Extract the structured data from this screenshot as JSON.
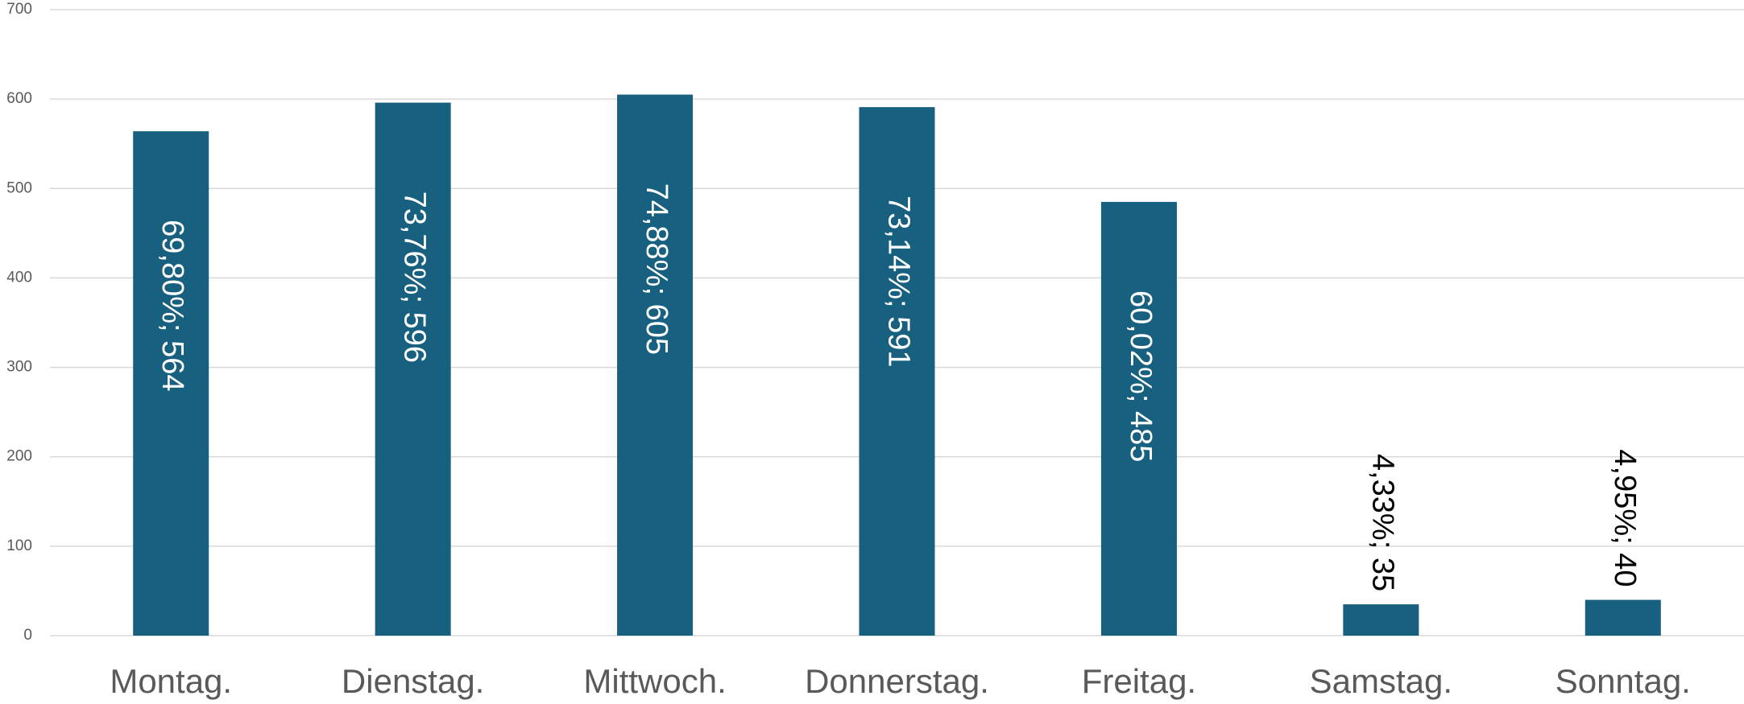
{
  "chart_data": {
    "type": "bar",
    "categories": [
      "Montag.",
      "Dienstag.",
      "Mittwoch.",
      "Donnerstag.",
      "Freitag.",
      "Samstag.",
      "Sonntag."
    ],
    "values": [
      564,
      596,
      605,
      591,
      485,
      35,
      40
    ],
    "value_labels": [
      "69,80%; 564",
      "73,76%; 596",
      "74,88%; 605",
      "73,14%; 591",
      "60,02%; 485",
      "4,33%; 35",
      "4,95%; 40"
    ],
    "color": "#17607f",
    "ylim": [
      0,
      700
    ],
    "yticks": [
      0,
      100,
      200,
      300,
      400,
      500,
      600,
      700
    ],
    "grid": true
  }
}
